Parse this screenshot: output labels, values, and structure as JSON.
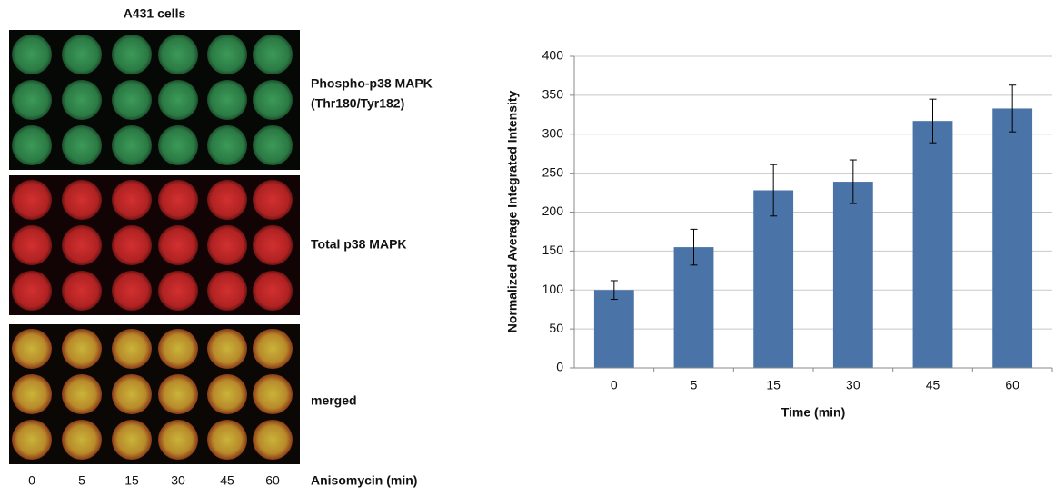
{
  "panel": {
    "title": "A431 cells",
    "row_labels": [
      [
        "Phospho-p38 MAPK",
        "(Thr180/Tyr182)"
      ],
      [
        "Total p38 MAPK"
      ],
      [
        "merged"
      ]
    ],
    "x_labels": [
      "0",
      "5",
      "15",
      "30",
      "45",
      "60"
    ],
    "x_title": "Anisomycin (min)"
  },
  "chart_data": {
    "type": "bar",
    "categories": [
      "0",
      "5",
      "15",
      "30",
      "45",
      "60"
    ],
    "values": [
      100,
      155,
      228,
      239,
      317,
      333
    ],
    "errors": [
      12,
      23,
      33,
      28,
      28,
      30
    ],
    "color": "#4a74a8",
    "ylim": [
      0,
      400
    ],
    "yticks": [
      0,
      50,
      100,
      150,
      200,
      250,
      300,
      350,
      400
    ],
    "grid": true,
    "x_label": "Time (min)",
    "y_label": "Normalized Average Integrated Intensity"
  }
}
